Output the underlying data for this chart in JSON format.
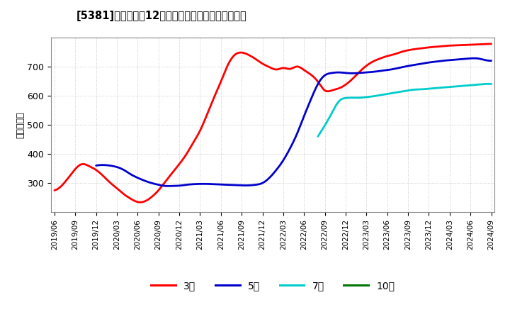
{
  "title": "[5381]　経常利益12か月移動合計の標準偏差の推移",
  "ylabel": "（百万円）",
  "background_color": "#ffffff",
  "plot_bg_color": "#ffffff",
  "grid_color": "#aaaaaa",
  "ylim": [
    200,
    800
  ],
  "yticks": [
    300,
    400,
    500,
    600,
    700
  ],
  "series": {
    "3year": {
      "color": "#ff0000",
      "label": "3年",
      "linewidth": 2.0,
      "x": [
        0,
        1,
        2,
        3,
        4,
        5,
        6,
        7,
        8,
        9,
        10,
        11,
        12,
        13,
        14,
        15,
        16,
        17,
        18,
        19,
        20,
        21,
        22,
        23,
        24,
        25,
        26,
        27,
        28,
        29,
        30,
        31,
        32,
        33,
        34,
        35,
        36,
        37,
        38,
        39,
        40,
        41,
        42,
        43,
        44,
        45,
        46,
        47,
        48,
        49,
        50,
        51,
        52,
        53,
        54,
        55,
        56,
        57,
        58,
        59,
        60,
        61,
        62,
        63
      ],
      "y": [
        275,
        290,
        318,
        348,
        365,
        358,
        345,
        325,
        302,
        282,
        262,
        246,
        235,
        237,
        252,
        275,
        305,
        335,
        365,
        398,
        438,
        480,
        535,
        593,
        648,
        705,
        740,
        748,
        740,
        726,
        710,
        698,
        690,
        695,
        692,
        700,
        688,
        672,
        648,
        618,
        618,
        625,
        638,
        658,
        682,
        703,
        718,
        728,
        736,
        742,
        750,
        756,
        760,
        763,
        766,
        768,
        770,
        772,
        773,
        774,
        775,
        776,
        777,
        778
      ]
    },
    "5year": {
      "color": "#0000cc",
      "label": "5年",
      "linewidth": 2.0,
      "x": [
        0,
        1,
        2,
        3,
        4,
        5,
        6,
        7,
        8,
        9,
        10,
        11,
        12,
        13,
        14,
        15,
        16,
        17,
        18,
        19,
        20,
        21,
        22,
        23,
        24,
        25,
        26,
        27,
        28,
        29,
        30,
        31,
        32,
        33,
        34,
        35,
        36,
        37,
        38,
        39,
        40,
        41,
        42,
        43,
        44,
        45,
        46,
        47,
        48,
        49,
        50,
        51,
        52,
        53,
        54,
        55,
        56,
        57,
        58,
        59,
        60,
        61,
        62,
        63
      ],
      "y": [
        null,
        null,
        null,
        null,
        null,
        null,
        360,
        362,
        360,
        355,
        345,
        330,
        318,
        308,
        300,
        294,
        290,
        290,
        291,
        294,
        296,
        297,
        297,
        296,
        295,
        294,
        293,
        292,
        292,
        294,
        300,
        318,
        345,
        378,
        420,
        470,
        530,
        588,
        640,
        670,
        678,
        680,
        678,
        677,
        678,
        680,
        682,
        685,
        688,
        692,
        697,
        702,
        706,
        710,
        714,
        717,
        720,
        722,
        724,
        726,
        728,
        728,
        723,
        720
      ]
    },
    "7year": {
      "color": "#00cccc",
      "label": "7年",
      "linewidth": 2.0,
      "x": [
        0,
        1,
        2,
        3,
        4,
        5,
        6,
        7,
        8,
        9,
        10,
        11,
        12,
        13,
        14,
        15,
        16,
        17,
        18,
        19,
        20,
        21,
        22,
        23,
        24,
        25,
        26,
        27,
        28,
        29,
        30,
        31,
        32,
        33,
        34,
        35,
        36,
        37,
        38,
        39,
        40,
        41,
        42,
        43,
        44,
        45,
        46,
        47,
        48,
        49,
        50,
        51,
        52,
        53,
        54,
        55,
        56,
        57,
        58,
        59,
        60,
        61,
        62,
        63
      ],
      "y": [
        null,
        null,
        null,
        null,
        null,
        null,
        null,
        null,
        null,
        null,
        null,
        null,
        null,
        null,
        null,
        null,
        null,
        null,
        null,
        null,
        null,
        null,
        null,
        null,
        null,
        null,
        null,
        null,
        null,
        null,
        null,
        null,
        null,
        null,
        null,
        null,
        null,
        null,
        460,
        498,
        540,
        580,
        592,
        593,
        593,
        595,
        598,
        602,
        606,
        610,
        614,
        618,
        621,
        622,
        624,
        626,
        628,
        630,
        632,
        634,
        636,
        638,
        640,
        640
      ]
    },
    "10year": {
      "color": "#007700",
      "label": "10年",
      "linewidth": 2.0,
      "x": [],
      "y": []
    }
  },
  "xtick_labels": [
    "2019/06",
    "2019/09",
    "2019/12",
    "2020/03",
    "2020/06",
    "2020/09",
    "2020/12",
    "2021/03",
    "2021/06",
    "2021/09",
    "2021/12",
    "2022/03",
    "2022/06",
    "2022/09",
    "2022/12",
    "2023/03",
    "2023/06",
    "2023/09",
    "2023/12",
    "2024/03",
    "2024/06",
    "2024/09"
  ],
  "xtick_positions": [
    0,
    3,
    6,
    9,
    12,
    15,
    18,
    21,
    24,
    27,
    30,
    33,
    36,
    39,
    42,
    45,
    48,
    51,
    54,
    57,
    60,
    63
  ],
  "legend_labels": [
    "3年",
    "5年",
    "7年",
    "10年"
  ],
  "legend_colors": [
    "#ff0000",
    "#0000cc",
    "#00cccc",
    "#007700"
  ]
}
